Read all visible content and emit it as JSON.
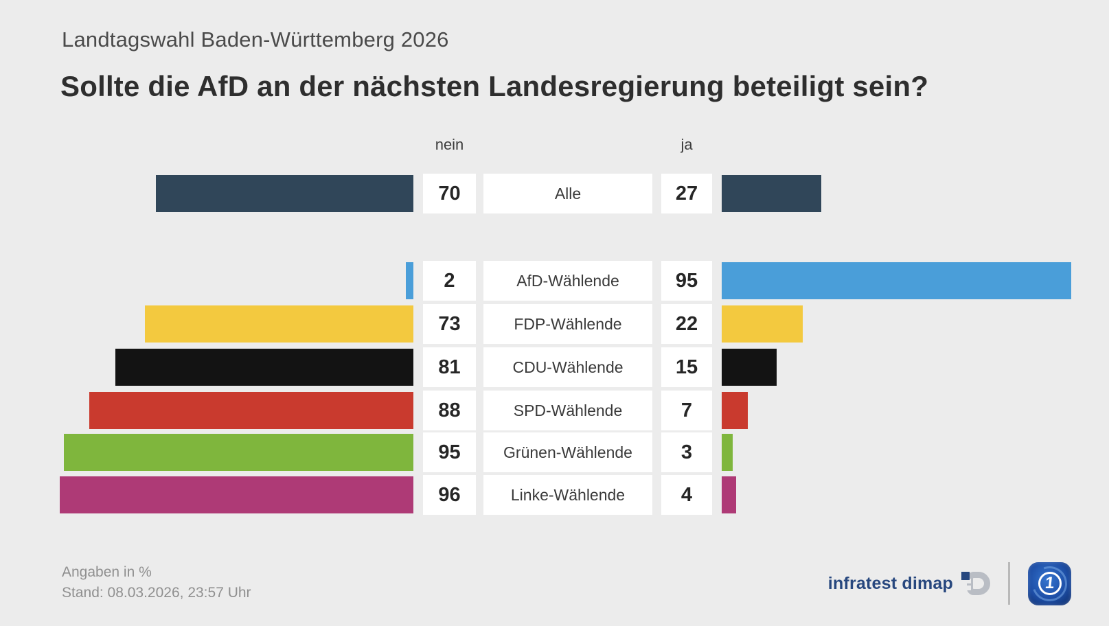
{
  "header": {
    "subtitle": "Landtagswahl Baden-Württemberg 2026",
    "title": "Sollte die AfD an der nächsten Landesregierung beteiligt sein?"
  },
  "columns": {
    "left_header": "nein",
    "right_header": "ja"
  },
  "chart_data": {
    "type": "bar",
    "orientation": "diverging-horizontal",
    "unit": "%",
    "left_axis_label": "nein",
    "right_axis_label": "ja",
    "value_range": [
      0,
      100
    ],
    "rows": [
      {
        "label": "Alle",
        "nein": 70,
        "ja": 27,
        "color": "#304659"
      },
      {
        "label": "AfD-Wählende",
        "nein": 2,
        "ja": 95,
        "color": "#4a9ed9"
      },
      {
        "label": "FDP-Wählende",
        "nein": 73,
        "ja": 22,
        "color": "#f3c93f"
      },
      {
        "label": "CDU-Wählende",
        "nein": 81,
        "ja": 15,
        "color": "#131313"
      },
      {
        "label": "SPD-Wählende",
        "nein": 88,
        "ja": 7,
        "color": "#c93a2e"
      },
      {
        "label": "Grünen-Wählende",
        "nein": 95,
        "ja": 3,
        "color": "#7fb63d"
      },
      {
        "label": "Linke-Wählende",
        "nein": 96,
        "ja": 4,
        "color": "#ae3a76"
      }
    ]
  },
  "footer": {
    "note": "Angaben in %",
    "stand": "Stand:  08.03.2026, 23:57 Uhr",
    "source": "infratest dimap"
  },
  "colors": {
    "background": "#ececec",
    "box_background": "#ffffff",
    "title_text": "#2e2e2e",
    "muted_text": "#8f8f8f",
    "infratest_navy": "#27477e"
  }
}
